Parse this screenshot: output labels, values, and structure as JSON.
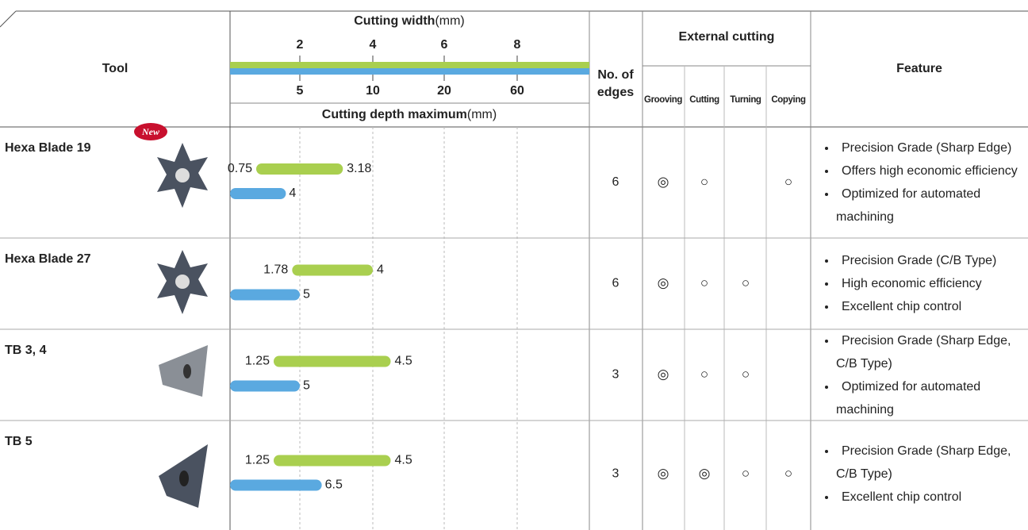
{
  "header": {
    "tool": "Tool",
    "cutting_width": "Cutting width",
    "cutting_width_unit": "(mm)",
    "cutting_depth": "Cutting depth maximum",
    "cutting_depth_unit": "(mm)",
    "edges": [
      "No. of",
      "edges"
    ],
    "external_cutting": "External cutting",
    "operations": [
      "Grooving",
      "Cutting",
      "Turning",
      "Copying"
    ],
    "feature": "Feature"
  },
  "scale": {
    "width_ticks": [
      2,
      4,
      6,
      8
    ],
    "depth_ticks": [
      5,
      10,
      20,
      60
    ]
  },
  "rows": [
    {
      "tool": "Hexa Blade 19",
      "badge": "New",
      "width": [
        0.75,
        3.18
      ],
      "depth": 4,
      "edges": 6,
      "marks": {
        "grooving": "◎",
        "cutting": "○",
        "copying": "○"
      },
      "features": [
        "Precision Grade (Sharp Edge)",
        "Offers high economic efficiency",
        "Optimized for automated machining"
      ]
    },
    {
      "tool": "Hexa Blade 27",
      "width": [
        1.78,
        4
      ],
      "depth": 5,
      "edges": 6,
      "marks": {
        "grooving": "◎",
        "cutting": "○",
        "turning": "○"
      },
      "features": [
        "Precision Grade (C/B Type)",
        "High economic efficiency",
        "Excellent chip control"
      ]
    },
    {
      "tool": "TB 3, 4",
      "width": [
        1.25,
        4.5
      ],
      "depth": 5,
      "edges": 3,
      "marks": {
        "grooving": "◎",
        "cutting": "○",
        "turning": "○"
      },
      "features": [
        "Precision Grade (Sharp Edge, C/B Type)",
        "Optimized for automated machining"
      ]
    },
    {
      "tool": "TB 5",
      "width": [
        1.25,
        4.5
      ],
      "depth": 6.5,
      "edges": 3,
      "marks": {
        "grooving": "◎",
        "cutting": "◎",
        "turning": "○",
        "copying": "○"
      },
      "features": [
        "Precision Grade (Sharp Edge, C/B Type)",
        "Excellent chip control"
      ]
    }
  ]
}
